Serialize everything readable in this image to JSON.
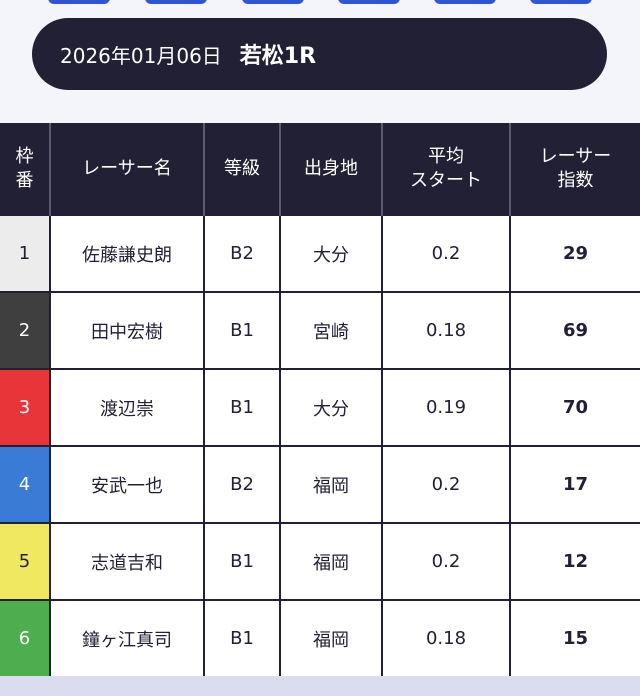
{
  "header": {
    "date": "2026年01月06日",
    "race": "若松1R"
  },
  "table": {
    "columns": [
      "枠番",
      "レーサー名",
      "等級",
      "出身地",
      "平均スタート",
      "レーサー指数"
    ],
    "column_lines": {
      "frame_1": "枠",
      "frame_2": "番",
      "start_1": "平均",
      "start_2": "スタート",
      "score_1": "レーサー",
      "score_2": "指数"
    },
    "rows": [
      {
        "frame": "1",
        "name": "佐藤謙史朗",
        "class": "B2",
        "origin": "大分",
        "avg_start": "0.2",
        "score": "29",
        "frame_color": "#ececec"
      },
      {
        "frame": "2",
        "name": "田中宏樹",
        "class": "B1",
        "origin": "宮崎",
        "avg_start": "0.18",
        "score": "69",
        "frame_color": "#3f3f3f"
      },
      {
        "frame": "3",
        "name": "渡辺崇",
        "class": "B1",
        "origin": "大分",
        "avg_start": "0.19",
        "score": "70",
        "frame_color": "#e8353a"
      },
      {
        "frame": "4",
        "name": "安武一也",
        "class": "B2",
        "origin": "福岡",
        "avg_start": "0.2",
        "score": "17",
        "frame_color": "#3a7bd5"
      },
      {
        "frame": "5",
        "name": "志道吉和",
        "class": "B1",
        "origin": "福岡",
        "avg_start": "0.2",
        "score": "12",
        "frame_color": "#f0e860"
      },
      {
        "frame": "6",
        "name": "鐘ヶ江真司",
        "class": "B1",
        "origin": "福岡",
        "avg_start": "0.18",
        "score": "15",
        "frame_color": "#4cae4c"
      }
    ]
  },
  "colors": {
    "header_bg": "#222034",
    "page_bg": "#f4f4fb",
    "accent": "#2f55d4"
  }
}
